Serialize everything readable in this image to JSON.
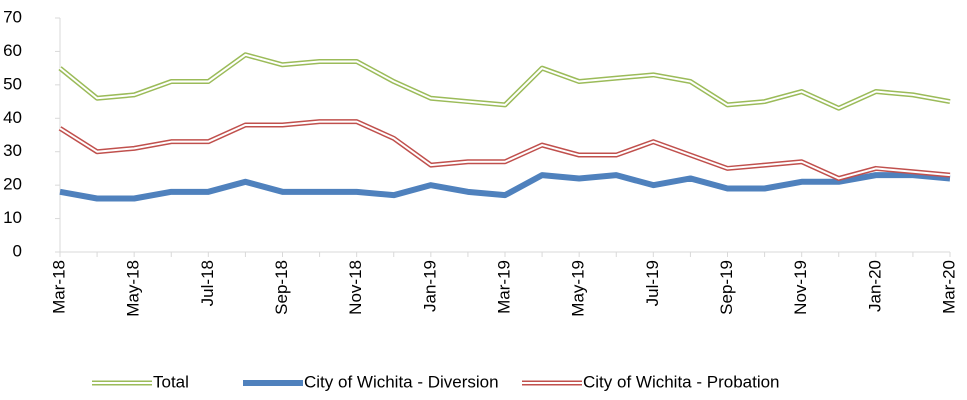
{
  "chart_data": {
    "type": "line",
    "categories": [
      "Mar-18",
      null,
      "May-18",
      null,
      "Jul-18",
      null,
      "Sep-18",
      null,
      "Nov-18",
      null,
      "Jan-19",
      null,
      "Mar-19",
      null,
      "May-19",
      null,
      "Jul-19",
      null,
      "Sep-19",
      null,
      "Nov-19",
      null,
      "Jan-20",
      null,
      "Mar-20"
    ],
    "series": [
      {
        "name": "Total",
        "color": "#9bbb59",
        "style": "double",
        "values": [
          55,
          46,
          47,
          51,
          51,
          59,
          56,
          57,
          57,
          51,
          46,
          45,
          44,
          55,
          51,
          52,
          53,
          51,
          44,
          45,
          48,
          43,
          48,
          47,
          45
        ]
      },
      {
        "name": "City of Wichita - Diversion",
        "color": "#4f81bd",
        "style": "solid",
        "values": [
          18,
          16,
          16,
          18,
          18,
          21,
          18,
          18,
          18,
          17,
          20,
          18,
          17,
          23,
          22,
          23,
          20,
          22,
          19,
          19,
          21,
          21,
          23,
          23,
          22
        ]
      },
      {
        "name": "City of Wichita - Probation",
        "color": "#c0504d",
        "style": "double",
        "values": [
          37,
          30,
          31,
          33,
          33,
          38,
          38,
          39,
          39,
          34,
          26,
          27,
          27,
          32,
          29,
          29,
          33,
          29,
          25,
          26,
          27,
          22,
          25,
          24,
          23
        ]
      }
    ],
    "ylim": [
      0,
      70
    ],
    "yticks": [
      0,
      10,
      20,
      30,
      40,
      50,
      60,
      70
    ],
    "legend": "bottom"
  }
}
